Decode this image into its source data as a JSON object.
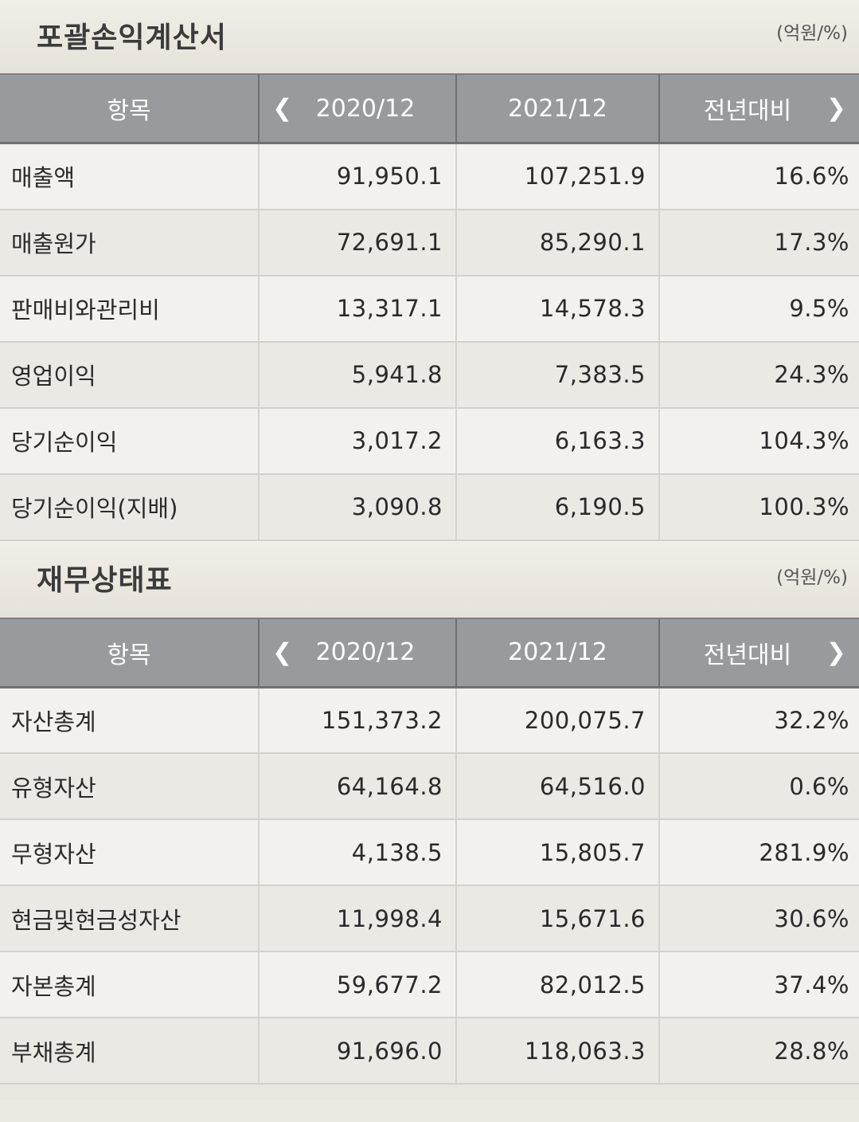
{
  "income_statement": {
    "title": "포괄손익계산서",
    "unit": "(억원/%)",
    "headers": {
      "item": "항목",
      "col1": "2020/12",
      "col2": "2021/12",
      "col3": "전년대비"
    },
    "rows": [
      {
        "item": "매출액",
        "v2020": "91,950.1",
        "v2021": "107,251.9",
        "yoy": "16.6%"
      },
      {
        "item": "매출원가",
        "v2020": "72,691.1",
        "v2021": "85,290.1",
        "yoy": "17.3%"
      },
      {
        "item": "판매비와관리비",
        "v2020": "13,317.1",
        "v2021": "14,578.3",
        "yoy": "9.5%"
      },
      {
        "item": "영업이익",
        "v2020": "5,941.8",
        "v2021": "7,383.5",
        "yoy": "24.3%"
      },
      {
        "item": "당기순이익",
        "v2020": "3,017.2",
        "v2021": "6,163.3",
        "yoy": "104.3%"
      },
      {
        "item": "당기순이익(지배)",
        "v2020": "3,090.8",
        "v2021": "6,190.5",
        "yoy": "100.3%"
      }
    ]
  },
  "balance_sheet": {
    "title": "재무상태표",
    "unit": "(억원/%)",
    "headers": {
      "item": "항목",
      "col1": "2020/12",
      "col2": "2021/12",
      "col3": "전년대비"
    },
    "rows": [
      {
        "item": "자산총계",
        "v2020": "151,373.2",
        "v2021": "200,075.7",
        "yoy": "32.2%"
      },
      {
        "item": "유형자산",
        "v2020": "64,164.8",
        "v2021": "64,516.0",
        "yoy": "0.6%"
      },
      {
        "item": "무형자산",
        "v2020": "4,138.5",
        "v2021": "15,805.7",
        "yoy": "281.9%"
      },
      {
        "item": "현금및현금성자산",
        "v2020": "11,998.4",
        "v2021": "15,671.6",
        "yoy": "30.6%"
      },
      {
        "item": "자본총계",
        "v2020": "59,677.2",
        "v2021": "82,012.5",
        "yoy": "37.4%"
      },
      {
        "item": "부채총계",
        "v2020": "91,696.0",
        "v2021": "118,063.3",
        "yoy": "28.8%"
      }
    ]
  },
  "icons": {
    "prev": "chevron-left-icon",
    "next": "chevron-right-icon"
  }
}
